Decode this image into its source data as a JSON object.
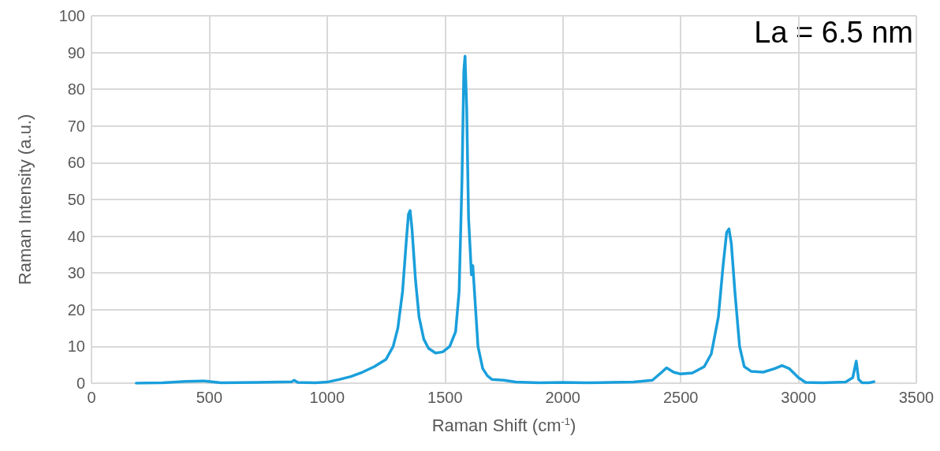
{
  "chart_data": {
    "type": "line",
    "xlabel": "Raman Shift (cm$^{-1}$)",
    "ylabel": "Raman Intensity (a.u.)",
    "annotations": [
      "La = 6.5 nm"
    ],
    "x": [
      190,
      300,
      400,
      480,
      550,
      700,
      850,
      860,
      875,
      950,
      1000,
      1050,
      1100,
      1150,
      1200,
      1250,
      1280,
      1300,
      1320,
      1335,
      1345,
      1352,
      1360,
      1375,
      1390,
      1410,
      1430,
      1460,
      1490,
      1520,
      1545,
      1560,
      1572,
      1580,
      1585,
      1592,
      1600,
      1608,
      1612,
      1618,
      1625,
      1640,
      1660,
      1680,
      1700,
      1750,
      1800,
      1900,
      2000,
      2100,
      2200,
      2300,
      2380,
      2420,
      2440,
      2470,
      2500,
      2550,
      2600,
      2630,
      2660,
      2680,
      2695,
      2705,
      2715,
      2730,
      2750,
      2770,
      2800,
      2850,
      2900,
      2930,
      2960,
      3000,
      3030,
      3100,
      3200,
      3230,
      3245,
      3255,
      3270,
      3300,
      3320
    ],
    "series": [
      {
        "color": "#1a9fdb",
        "values": [
          0,
          0.1,
          0.5,
          0.6,
          0.1,
          0.2,
          0.4,
          0.8,
          0.2,
          0.1,
          0.3,
          1,
          1.8,
          3,
          4.5,
          6.5,
          10,
          15,
          25,
          38,
          46,
          47,
          42,
          28,
          18,
          12,
          9.5,
          8.2,
          8.5,
          10,
          14,
          25,
          55,
          85,
          89,
          75,
          45,
          35,
          29.5,
          32,
          25,
          10,
          4,
          2,
          1,
          0.8,
          0.3,
          0.1,
          0.2,
          0.1,
          0.2,
          0.3,
          0.8,
          3,
          4.2,
          3,
          2.5,
          2.8,
          4.5,
          8,
          18,
          32,
          41,
          42,
          38,
          25,
          10,
          4.5,
          3.2,
          3,
          4,
          4.8,
          4,
          1.5,
          0.2,
          0.1,
          0.3,
          1.5,
          6,
          1,
          0.1,
          0.1,
          0.4
        ]
      }
    ],
    "xlim": [
      0,
      3500
    ],
    "xticks": [
      0,
      500,
      1000,
      1500,
      2000,
      2500,
      3000,
      3500
    ],
    "ylim": [
      0,
      100
    ],
    "yticks": [
      0,
      10,
      20,
      30,
      40,
      50,
      60,
      70,
      80,
      90,
      100
    ],
    "grid": true,
    "marker": "none",
    "line_style": "solid"
  }
}
